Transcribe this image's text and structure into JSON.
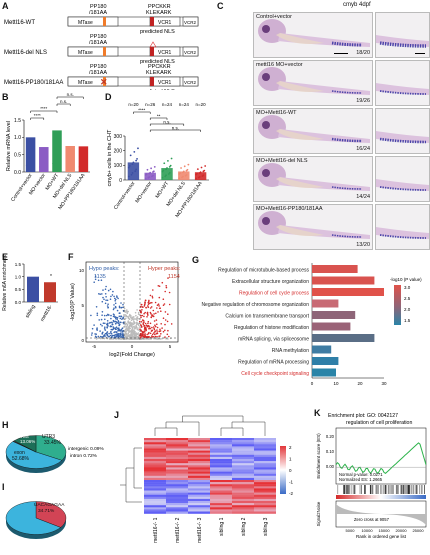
{
  "panelA": {
    "letter": "A",
    "rows": [
      {
        "name": "Mettl16-WT",
        "top1": "PP180",
        "top2": "/181AA",
        "topR1": "PPCKKR",
        "topR2": "KLEKARK",
        "nls": "predicted NLS",
        "mtase": "MTase",
        "vcr1": "VCR1",
        "vcr2": "VCR2"
      },
      {
        "name": "Mettl16-del NLS",
        "top1": "PP180",
        "top2": "/181AA",
        "topR1": "",
        "topR2": "",
        "nls": "predicted NLS",
        "mtase": "MTase",
        "vcr1": "VCR1",
        "vcr2": "VCR2"
      },
      {
        "name": "Mettl16-PP180/181AA",
        "top1": "PP180",
        "top2": "/181AA",
        "topR1": "PPCKKR",
        "topR2": "KLEKARK",
        "nls": "predicted NLS",
        "mtase": "MTase",
        "vcr1": "VCR1",
        "vcr2": "VCR2"
      }
    ]
  },
  "panelB": {
    "letter": "B",
    "chart_data": {
      "type": "bar",
      "ylabel": "Relative mRNA level",
      "categories": [
        "Control+vector",
        "MO+vector",
        "MO+WT",
        "MO+del NLS",
        "MO+PP180/181AA"
      ],
      "values": [
        1.0,
        0.72,
        1.2,
        0.75,
        0.74
      ],
      "colors": [
        "#3b4fa3",
        "#8b5cc4",
        "#2f9e57",
        "#f08a70",
        "#d22a2a"
      ],
      "ylim": [
        0,
        1.5
      ],
      "yticks": [
        "0.0",
        "0.5",
        "1.0",
        "1.5"
      ],
      "sig": [
        "****",
        "****",
        "n.s.",
        "n.s."
      ]
    }
  },
  "panelC": {
    "letter": "C",
    "title": "cmyb 4dpf",
    "rows": [
      {
        "label": "Control+vector",
        "count": "18/20"
      },
      {
        "label": "mettl16 MO+vector",
        "count": "19/26"
      },
      {
        "label": "MO+Mettl16-WT",
        "count": "16/24"
      },
      {
        "label": "MO+Mettl16-del NLS",
        "count": "14/24"
      },
      {
        "label": "MO+Mettl16-PP180/181AA",
        "count": "13/20"
      }
    ]
  },
  "panelD": {
    "letter": "D",
    "chart_data": {
      "type": "bar",
      "ylabel": "cmyb+ cells in the CHT",
      "categories": [
        "Control+vector",
        "MO+vector",
        "MO+WT",
        "MO+del NLS",
        "MO+PP180/181AA"
      ],
      "n": [
        "n=20",
        "n=26",
        "n=24",
        "n=24",
        "n=20"
      ],
      "values": [
        140,
        58,
        95,
        68,
        62
      ],
      "colors": [
        "#3b4fa3",
        "#8b5cc4",
        "#2f9e57",
        "#f08a70",
        "#d22a2a"
      ],
      "ylim": [
        0,
        350
      ],
      "yticks": [
        "0",
        "100",
        "200",
        "300"
      ],
      "sig": [
        "****",
        "**",
        "n.s.",
        "n.s."
      ]
    }
  },
  "panelE": {
    "letter": "E",
    "chart_data": {
      "type": "bar",
      "ylabel": "Relative m6A enrichment",
      "categories": [
        "sibling",
        "mettl16-"
      ],
      "values": [
        1.0,
        0.78
      ],
      "colors": [
        "#3b4fa3",
        "#c0392b"
      ],
      "ylim": [
        0,
        1.5
      ],
      "yticks": [
        "0.0",
        "0.5",
        "1.0",
        "1.5"
      ],
      "sig": [
        "*"
      ]
    }
  },
  "panelF": {
    "letter": "F",
    "chart_data": {
      "type": "scatter",
      "xlabel": "log2(Fold Change)",
      "ylabel": "-log10(P Value)",
      "hypo_label": "Hypo peaks:",
      "hypo_count": "1135",
      "hyper_label": "Hyper peaks:",
      "hyper_count": "1154",
      "xticks": [
        "-5",
        "0",
        "5"
      ],
      "yticks": [
        "0",
        "5",
        "10"
      ]
    }
  },
  "panelG": {
    "letter": "G",
    "chart_data": {
      "type": "bar",
      "legend_title": "-log10 (P value)",
      "legend_ticks": [
        "3.0",
        "2.5",
        "2.0",
        "1.5"
      ],
      "xticks": [
        "0",
        "10",
        "20",
        "30"
      ],
      "terms": [
        {
          "label": "Regulation of microtubule-based process",
          "value": 19,
          "color": "#d9534f",
          "red": false
        },
        {
          "label": "Extracellular structure organization",
          "value": 26,
          "color": "#d9534f",
          "red": false
        },
        {
          "label": "Regulation of cell cycle process",
          "value": 30,
          "color": "#e0524a",
          "red": true
        },
        {
          "label": "Negative regulation of chromosome organization",
          "value": 11,
          "color": "#c86a74",
          "red": false
        },
        {
          "label": "Calcium ion transmembrane transport",
          "value": 18,
          "color": "#8e6578",
          "red": false
        },
        {
          "label": "Regulation of histone modification",
          "value": 16,
          "color": "#9a6377",
          "red": false
        },
        {
          "label": "mRNA splicing, via spliceosome",
          "value": 26,
          "color": "#5a6e86",
          "red": false
        },
        {
          "label": "RNA methylation",
          "value": 8,
          "color": "#3f7ca3",
          "red": false
        },
        {
          "label": "Regulation of mRNA processing",
          "value": 11,
          "color": "#2f7fa8",
          "red": false
        },
        {
          "label": "Cell cycle checkpoint signaling",
          "value": 10,
          "color": "#2a84a8",
          "red": true
        }
      ]
    }
  },
  "panelH": {
    "letter": "H",
    "chart_data": {
      "type": "pie",
      "slices": [
        {
          "label": "UTR3",
          "value": 33.45,
          "color": "#2fae8e"
        },
        {
          "label": "exon",
          "value": 52.68,
          "color": "#3cb4dd"
        },
        {
          "label": "intergenic",
          "value": 0.09,
          "color": "#777777"
        },
        {
          "label": "intron",
          "value": 0.72,
          "color": "#555555"
        },
        {
          "label": "TSS",
          "value": 13.06,
          "color": "#1d6f58"
        }
      ],
      "labels": [
        "UTR3",
        "33.45%",
        "exon",
        "52.68%",
        "intergenic 0.09%",
        "intron 0.72%",
        "TSS",
        "13.06%"
      ]
    }
  },
  "panelI": {
    "letter": "I",
    "chart_data": {
      "type": "pie",
      "slices": [
        {
          "label": "UACAGAGAA",
          "value": 34.71,
          "color": "#d24455"
        },
        {
          "label": "other",
          "value": 65.29,
          "color": "#3cb4dd"
        }
      ],
      "labels": [
        "UACAGAGAA",
        "34.71%"
      ]
    }
  },
  "panelJ": {
    "letter": "J",
    "chart_data": {
      "type": "heatmap",
      "columns": [
        "mettl16-/- 1",
        "mettl16-/- 2",
        "mettl16-/- 3",
        "sibling 1",
        "sibling 2",
        "sibling 3"
      ],
      "scale": [
        "2",
        "1",
        "0",
        "-1",
        "-2"
      ]
    }
  },
  "panelK": {
    "letter": "K",
    "chart_data": {
      "type": "line",
      "title": "Enrichment plot: GO: 0042127 regulation of cell proliferation",
      "ylabel_top": "Enrichment score (ES)",
      "ylabel_bottom": "Signal2Noise",
      "xlabel": "Rank in ordered gene list",
      "pval": "Normal p-value: 0.0271",
      "nes": "Normalized ES: 1.2665",
      "zero_cross": "Zero cross at 9057",
      "yticks": [
        "0.20",
        "0.10",
        "0.00"
      ],
      "xticks": [
        "5000",
        "10000",
        "15000",
        "20000",
        "25000"
      ]
    }
  }
}
